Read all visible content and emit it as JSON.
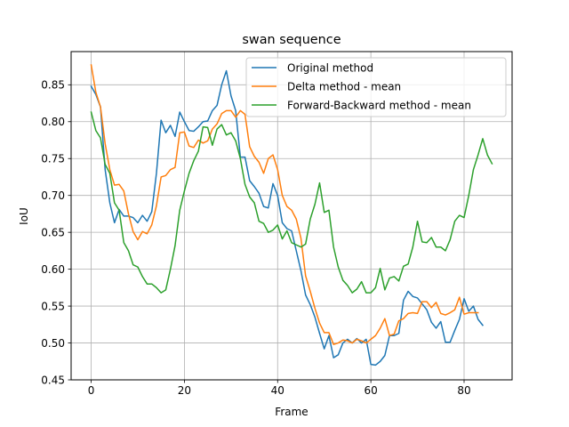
{
  "chart_data": {
    "type": "line",
    "title": "swan sequence",
    "xlabel": "Frame",
    "ylabel": "IoU",
    "xlim": [
      -4.3,
      90.3
    ],
    "ylim": [
      0.45,
      0.895
    ],
    "xticks": [
      0,
      20,
      40,
      60,
      80
    ],
    "xtick_labels": [
      "0",
      "20",
      "40",
      "60",
      "80"
    ],
    "yticks": [
      0.45,
      0.5,
      0.55,
      0.6,
      0.65,
      0.7,
      0.75,
      0.8,
      0.85
    ],
    "ytick_labels": [
      "0.45",
      "0.50",
      "0.55",
      "0.60",
      "0.65",
      "0.70",
      "0.75",
      "0.80",
      "0.85"
    ],
    "grid": true,
    "legend_position": "top-right",
    "series": [
      {
        "name": "Original method",
        "color": "#1f77b4",
        "x_start": 0,
        "values": [
          0.848,
          0.837,
          0.82,
          0.735,
          0.69,
          0.663,
          0.681,
          0.672,
          0.672,
          0.67,
          0.663,
          0.673,
          0.665,
          0.678,
          0.73,
          0.802,
          0.785,
          0.795,
          0.78,
          0.813,
          0.8,
          0.788,
          0.787,
          0.793,
          0.8,
          0.801,
          0.815,
          0.822,
          0.85,
          0.869,
          0.835,
          0.815,
          0.752,
          0.752,
          0.72,
          0.712,
          0.703,
          0.685,
          0.683,
          0.716,
          0.7,
          0.663,
          0.655,
          0.652,
          0.625,
          0.598,
          0.565,
          0.552,
          0.535,
          0.513,
          0.492,
          0.51,
          0.48,
          0.484,
          0.5,
          0.505,
          0.5,
          0.506,
          0.5,
          0.505,
          0.471,
          0.47,
          0.475,
          0.483,
          0.51,
          0.51,
          0.513,
          0.558,
          0.57,
          0.563,
          0.561,
          0.553,
          0.545,
          0.528,
          0.52,
          0.529,
          0.501,
          0.501,
          0.517,
          0.532,
          0.56,
          0.543,
          0.55,
          0.532,
          0.524
        ]
      },
      {
        "name": "Delta method - mean",
        "color": "#ff7f0e",
        "x_start": 0,
        "values": [
          0.877,
          0.84,
          0.82,
          0.77,
          0.735,
          0.714,
          0.715,
          0.706,
          0.675,
          0.651,
          0.64,
          0.651,
          0.648,
          0.66,
          0.686,
          0.725,
          0.727,
          0.735,
          0.738,
          0.785,
          0.786,
          0.767,
          0.765,
          0.775,
          0.771,
          0.774,
          0.79,
          0.797,
          0.811,
          0.815,
          0.815,
          0.806,
          0.815,
          0.81,
          0.766,
          0.753,
          0.745,
          0.73,
          0.75,
          0.755,
          0.735,
          0.7,
          0.685,
          0.68,
          0.668,
          0.642,
          0.591,
          0.57,
          0.547,
          0.527,
          0.514,
          0.514,
          0.498,
          0.5,
          0.504,
          0.503,
          0.5,
          0.505,
          0.503,
          0.5,
          0.505,
          0.51,
          0.52,
          0.533,
          0.51,
          0.512,
          0.53,
          0.533,
          0.54,
          0.541,
          0.54,
          0.556,
          0.556,
          0.548,
          0.555,
          0.54,
          0.538,
          0.541,
          0.545,
          0.562,
          0.539,
          0.541,
          0.541,
          0.541
        ]
      },
      {
        "name": "Forward-Backward method - mean",
        "color": "#2ca02c",
        "x_start": 0,
        "values": [
          0.813,
          0.788,
          0.778,
          0.742,
          0.73,
          0.69,
          0.68,
          0.636,
          0.625,
          0.606,
          0.603,
          0.59,
          0.58,
          0.58,
          0.575,
          0.568,
          0.572,
          0.6,
          0.632,
          0.68,
          0.706,
          0.73,
          0.747,
          0.76,
          0.793,
          0.792,
          0.768,
          0.79,
          0.796,
          0.782,
          0.785,
          0.774,
          0.75,
          0.715,
          0.698,
          0.69,
          0.665,
          0.662,
          0.65,
          0.653,
          0.66,
          0.641,
          0.652,
          0.636,
          0.633,
          0.63,
          0.634,
          0.668,
          0.688,
          0.717,
          0.677,
          0.68,
          0.63,
          0.603,
          0.585,
          0.578,
          0.568,
          0.573,
          0.583,
          0.568,
          0.568,
          0.575,
          0.601,
          0.572,
          0.588,
          0.59,
          0.584,
          0.604,
          0.607,
          0.63,
          0.665,
          0.637,
          0.636,
          0.643,
          0.63,
          0.63,
          0.625,
          0.64,
          0.665,
          0.673,
          0.67,
          0.7,
          0.735,
          0.755,
          0.777,
          0.755,
          0.743
        ]
      }
    ]
  }
}
